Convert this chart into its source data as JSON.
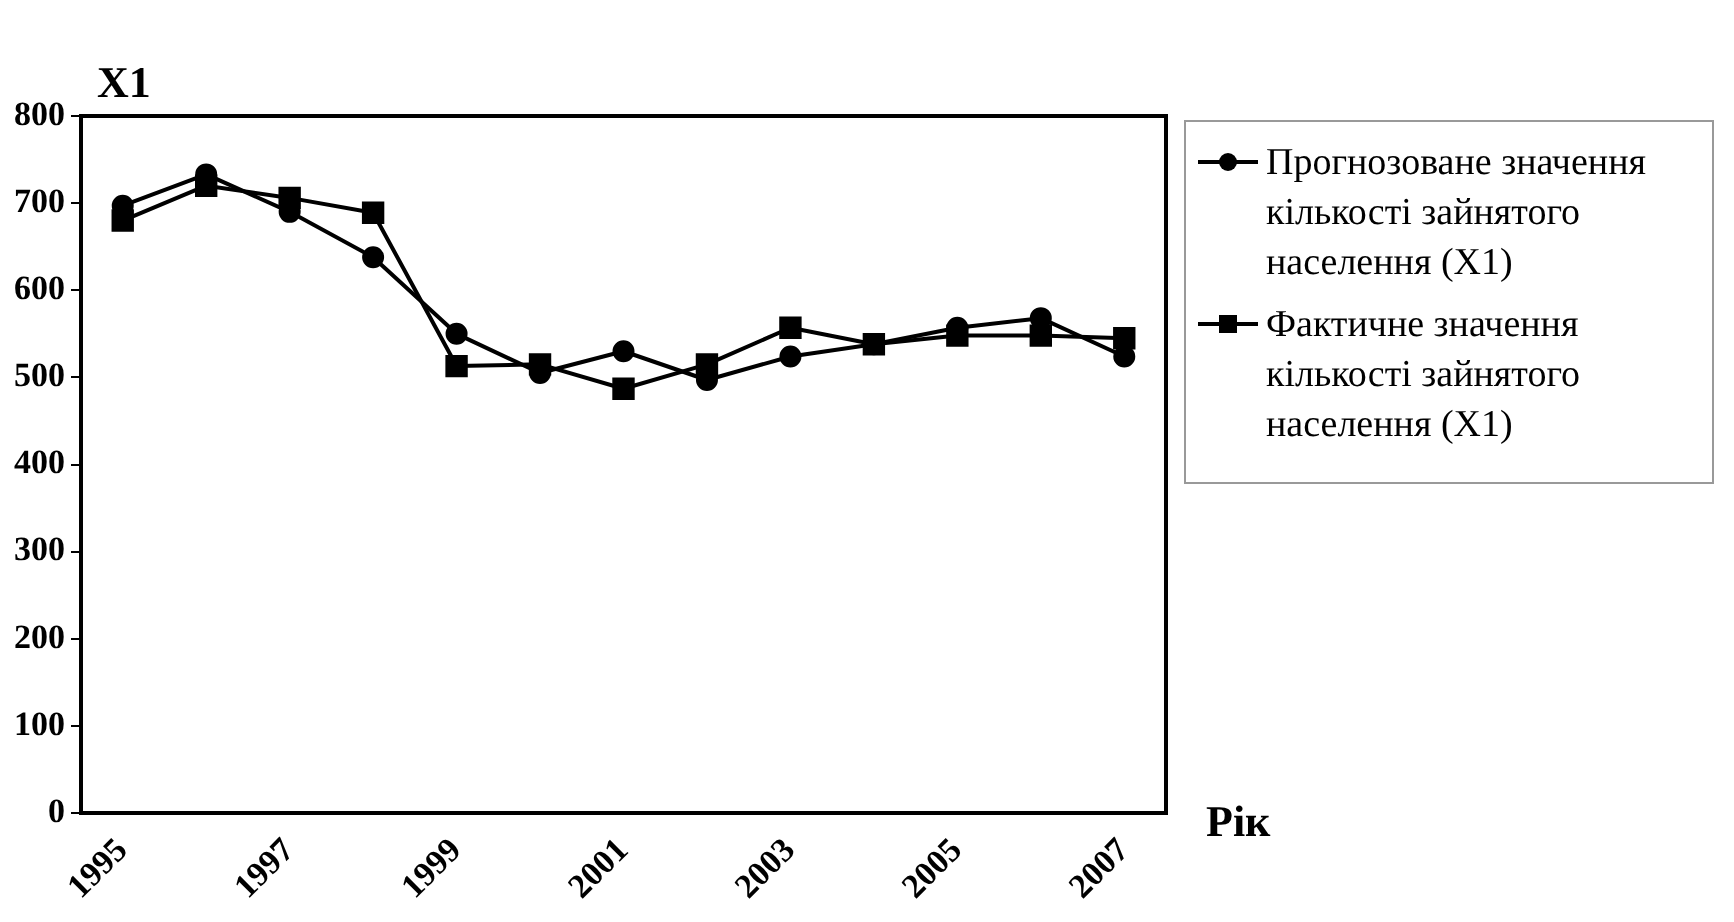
{
  "chart_data": {
    "type": "line",
    "ylabel": "X1",
    "xlabel": "Рік",
    "categories": [
      "1995",
      null,
      "1997",
      null,
      "1999",
      null,
      "2001",
      null,
      "2003",
      null,
      "2005",
      null,
      "2007"
    ],
    "ylim": [
      0,
      800
    ],
    "yticks": [
      0,
      100,
      200,
      300,
      400,
      500,
      600,
      700,
      800
    ],
    "grid": false,
    "legend": "right",
    "line_style": "solid",
    "series": [
      {
        "name": "Прогнозоване значення кількості зайнятого населення (X1)",
        "color": "#000000",
        "marker": "circle",
        "values": [
          697,
          733,
          690,
          638,
          550,
          505,
          530,
          497,
          524,
          538,
          557,
          568,
          524
        ]
      },
      {
        "name": "Фактичне значення кількості зайнятого населення (X1)",
        "color": "#000000",
        "marker": "square",
        "values": [
          680,
          720,
          706,
          689,
          513,
          515,
          487,
          515,
          557,
          538,
          548,
          548,
          545
        ]
      }
    ]
  }
}
